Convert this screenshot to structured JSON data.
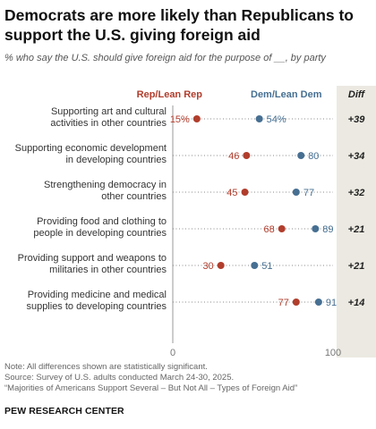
{
  "header": {
    "title": "Democrats are more likely than Republicans to support the U.S. giving foreign aid",
    "subtitle": "% who say the U.S. should give foreign aid for the purpose of __, by party"
  },
  "legend": {
    "rep": "Rep/Lean Rep",
    "dem": "Dem/Lean Dem",
    "diff": "Diff"
  },
  "notes": {
    "note": "Note: All differences shown are statistically significant.",
    "source": "Source: Survey of U.S. adults conducted March 24-30, 2025.",
    "report": "“Majorities of Americans Support Several – But Not All – Types of Foreign Aid”"
  },
  "footer": {
    "org": "PEW RESEARCH CENTER"
  },
  "chart_data": {
    "type": "dot",
    "categories": [
      [
        "Supporting art and cultural",
        "activities in other countries"
      ],
      [
        "Supporting economic development",
        "in developing countries"
      ],
      [
        "Strengthening democracy in",
        "other countries"
      ],
      [
        "Providing food and clothing to",
        "people in developing countries"
      ],
      [
        "Providing support and weapons to",
        "militaries in other countries"
      ],
      [
        "Providing medicine and medical",
        "supplies to developing countries"
      ]
    ],
    "series": [
      {
        "name": "Rep/Lean Rep",
        "color": "#b13d2c",
        "values": [
          15,
          46,
          45,
          68,
          30,
          77
        ]
      },
      {
        "name": "Dem/Lean Dem",
        "color": "#466f92",
        "values": [
          54,
          80,
          77,
          89,
          51,
          91
        ]
      }
    ],
    "first_value_labels": [
      "15%",
      "54%"
    ],
    "diff": [
      "+39",
      "+34",
      "+32",
      "+21",
      "+21",
      "+14"
    ],
    "xlim": [
      0,
      100
    ],
    "xticks": [
      "0",
      "100"
    ],
    "legend_position": "top"
  }
}
